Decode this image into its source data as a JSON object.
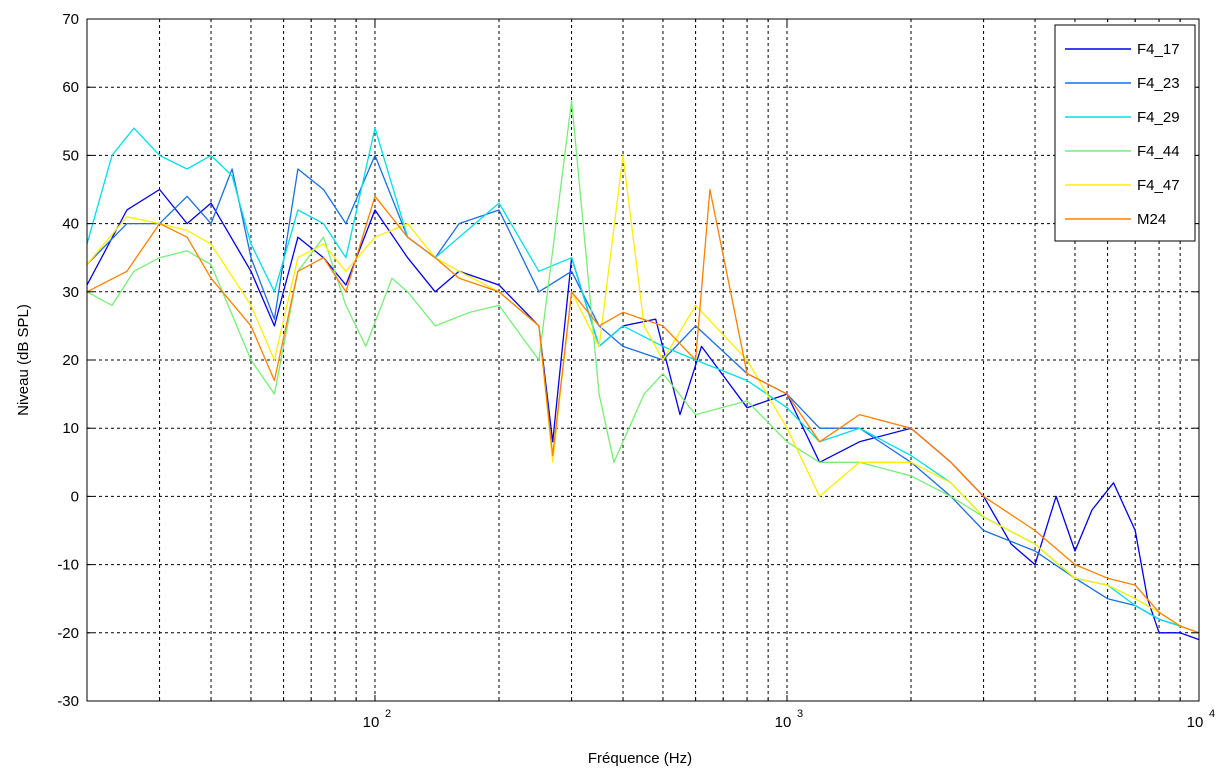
{
  "chart_data": {
    "type": "line",
    "title": "",
    "xlabel": "Fréquence (Hz)",
    "ylabel": "Niveau (dB SPL)",
    "xscale": "log",
    "xlim": [
      20,
      10000
    ],
    "ylim": [
      -30,
      70
    ],
    "grid": true,
    "legend_position": "top-right",
    "yticks": [
      -30,
      -20,
      -10,
      0,
      10,
      20,
      30,
      40,
      50,
      60,
      70
    ],
    "xticks": [
      {
        "base": "10",
        "exp": "2",
        "value": 100
      },
      {
        "base": "10",
        "exp": "3",
        "value": 1000
      },
      {
        "base": "10",
        "exp": "4",
        "value": 10000
      }
    ],
    "series": [
      {
        "name": "F4_17",
        "color": "#0000ee",
        "points": [
          [
            20,
            31
          ],
          [
            25,
            42
          ],
          [
            30,
            45
          ],
          [
            35,
            40
          ],
          [
            40,
            43
          ],
          [
            50,
            33
          ],
          [
            57,
            25
          ],
          [
            65,
            38
          ],
          [
            75,
            35
          ],
          [
            85,
            31
          ],
          [
            100,
            42
          ],
          [
            120,
            35
          ],
          [
            140,
            30
          ],
          [
            160,
            33
          ],
          [
            200,
            31
          ],
          [
            250,
            25
          ],
          [
            270,
            8
          ],
          [
            300,
            35
          ],
          [
            350,
            22
          ],
          [
            400,
            25
          ],
          [
            480,
            26
          ],
          [
            550,
            12
          ],
          [
            620,
            22
          ],
          [
            800,
            13
          ],
          [
            1000,
            15
          ],
          [
            1200,
            5
          ],
          [
            1500,
            8
          ],
          [
            2000,
            10
          ],
          [
            2500,
            5
          ],
          [
            3000,
            0
          ],
          [
            3500,
            -7
          ],
          [
            4000,
            -10
          ],
          [
            4500,
            0
          ],
          [
            5000,
            -8
          ],
          [
            5500,
            -2
          ],
          [
            6200,
            2
          ],
          [
            7000,
            -5
          ],
          [
            7500,
            -15
          ],
          [
            8000,
            -20
          ],
          [
            9000,
            -20
          ],
          [
            10000,
            -21
          ]
        ]
      },
      {
        "name": "F4_23",
        "color": "#1a6ee6",
        "points": [
          [
            20,
            34
          ],
          [
            25,
            40
          ],
          [
            30,
            40
          ],
          [
            35,
            44
          ],
          [
            40,
            40
          ],
          [
            45,
            48
          ],
          [
            50,
            35
          ],
          [
            57,
            26
          ],
          [
            65,
            48
          ],
          [
            75,
            45
          ],
          [
            85,
            40
          ],
          [
            100,
            50
          ],
          [
            120,
            38
          ],
          [
            140,
            35
          ],
          [
            160,
            40
          ],
          [
            200,
            42
          ],
          [
            250,
            30
          ],
          [
            300,
            33
          ],
          [
            350,
            25
          ],
          [
            400,
            22
          ],
          [
            500,
            20
          ],
          [
            600,
            25
          ],
          [
            800,
            18
          ],
          [
            1000,
            15
          ],
          [
            1200,
            10
          ],
          [
            1500,
            10
          ],
          [
            2000,
            5
          ],
          [
            2500,
            0
          ],
          [
            3000,
            -5
          ],
          [
            4000,
            -8
          ],
          [
            5000,
            -12
          ],
          [
            6000,
            -15
          ],
          [
            7000,
            -16
          ],
          [
            8000,
            -18
          ],
          [
            9000,
            -19
          ],
          [
            10000,
            -20
          ]
        ]
      },
      {
        "name": "F4_29",
        "color": "#00dfe8",
        "points": [
          [
            20,
            37
          ],
          [
            23,
            50
          ],
          [
            26,
            54
          ],
          [
            30,
            50
          ],
          [
            35,
            48
          ],
          [
            40,
            50
          ],
          [
            45,
            47
          ],
          [
            50,
            37
          ],
          [
            57,
            30
          ],
          [
            65,
            42
          ],
          [
            75,
            40
          ],
          [
            85,
            35
          ],
          [
            100,
            54
          ],
          [
            120,
            38
          ],
          [
            140,
            35
          ],
          [
            160,
            38
          ],
          [
            200,
            43
          ],
          [
            250,
            33
          ],
          [
            300,
            35
          ],
          [
            350,
            22
          ],
          [
            400,
            25
          ],
          [
            500,
            22
          ],
          [
            600,
            20
          ],
          [
            800,
            17
          ],
          [
            1000,
            13
          ],
          [
            1200,
            8
          ],
          [
            1500,
            10
          ],
          [
            2000,
            6
          ],
          [
            2500,
            2
          ],
          [
            3000,
            -3
          ],
          [
            4000,
            -7
          ],
          [
            5000,
            -12
          ],
          [
            6000,
            -13
          ],
          [
            7000,
            -16
          ],
          [
            8000,
            -18
          ],
          [
            9000,
            -19
          ],
          [
            10000,
            -20
          ]
        ]
      },
      {
        "name": "F4_44",
        "color": "#77ee77",
        "points": [
          [
            20,
            30
          ],
          [
            23,
            28
          ],
          [
            26,
            33
          ],
          [
            30,
            35
          ],
          [
            35,
            36
          ],
          [
            40,
            34
          ],
          [
            50,
            20
          ],
          [
            57,
            15
          ],
          [
            65,
            33
          ],
          [
            75,
            38
          ],
          [
            85,
            28
          ],
          [
            95,
            22
          ],
          [
            110,
            32
          ],
          [
            120,
            30
          ],
          [
            140,
            25
          ],
          [
            170,
            27
          ],
          [
            200,
            28
          ],
          [
            250,
            20
          ],
          [
            300,
            58
          ],
          [
            350,
            15
          ],
          [
            380,
            5
          ],
          [
            450,
            15
          ],
          [
            500,
            18
          ],
          [
            600,
            12
          ],
          [
            800,
            14
          ],
          [
            1000,
            8
          ],
          [
            1200,
            5
          ],
          [
            1500,
            5
          ],
          [
            2000,
            3
          ],
          [
            2500,
            0
          ],
          [
            3000,
            -3
          ],
          [
            4000,
            -7
          ],
          [
            5000,
            -12
          ],
          [
            6000,
            -13
          ],
          [
            7000,
            -15
          ],
          [
            8000,
            -17
          ],
          [
            9000,
            -19
          ],
          [
            10000,
            -20
          ]
        ]
      },
      {
        "name": "F4_47",
        "color": "#ffee00",
        "points": [
          [
            20,
            34
          ],
          [
            25,
            41
          ],
          [
            30,
            40
          ],
          [
            35,
            39
          ],
          [
            40,
            37
          ],
          [
            50,
            28
          ],
          [
            57,
            20
          ],
          [
            65,
            35
          ],
          [
            75,
            37
          ],
          [
            85,
            33
          ],
          [
            100,
            38
          ],
          [
            120,
            40
          ],
          [
            140,
            35
          ],
          [
            160,
            33
          ],
          [
            200,
            30
          ],
          [
            250,
            25
          ],
          [
            270,
            5
          ],
          [
            300,
            30
          ],
          [
            350,
            22
          ],
          [
            400,
            50
          ],
          [
            450,
            25
          ],
          [
            500,
            20
          ],
          [
            600,
            28
          ],
          [
            800,
            20
          ],
          [
            1000,
            10
          ],
          [
            1200,
            0
          ],
          [
            1500,
            5
          ],
          [
            2000,
            5
          ],
          [
            2500,
            2
          ],
          [
            3000,
            -3
          ],
          [
            4000,
            -7
          ],
          [
            5000,
            -12
          ],
          [
            6000,
            -13
          ],
          [
            7000,
            -15
          ],
          [
            8000,
            -17
          ],
          [
            9000,
            -19
          ],
          [
            10000,
            -20
          ]
        ]
      },
      {
        "name": "M24",
        "color": "#ff8000",
        "points": [
          [
            20,
            30
          ],
          [
            25,
            33
          ],
          [
            30,
            40
          ],
          [
            35,
            38
          ],
          [
            40,
            32
          ],
          [
            50,
            25
          ],
          [
            57,
            17
          ],
          [
            65,
            33
          ],
          [
            75,
            35
          ],
          [
            85,
            30
          ],
          [
            100,
            44
          ],
          [
            120,
            38
          ],
          [
            140,
            35
          ],
          [
            160,
            32
          ],
          [
            200,
            30
          ],
          [
            250,
            25
          ],
          [
            270,
            6
          ],
          [
            300,
            30
          ],
          [
            350,
            25
          ],
          [
            400,
            27
          ],
          [
            500,
            25
          ],
          [
            600,
            20
          ],
          [
            650,
            45
          ],
          [
            800,
            18
          ],
          [
            1000,
            15
          ],
          [
            1200,
            8
          ],
          [
            1500,
            12
          ],
          [
            2000,
            10
          ],
          [
            2500,
            5
          ],
          [
            3000,
            0
          ],
          [
            4000,
            -5
          ],
          [
            5000,
            -10
          ],
          [
            6000,
            -12
          ],
          [
            7000,
            -13
          ],
          [
            8000,
            -17
          ],
          [
            9000,
            -19
          ],
          [
            10000,
            -20
          ]
        ]
      }
    ]
  }
}
